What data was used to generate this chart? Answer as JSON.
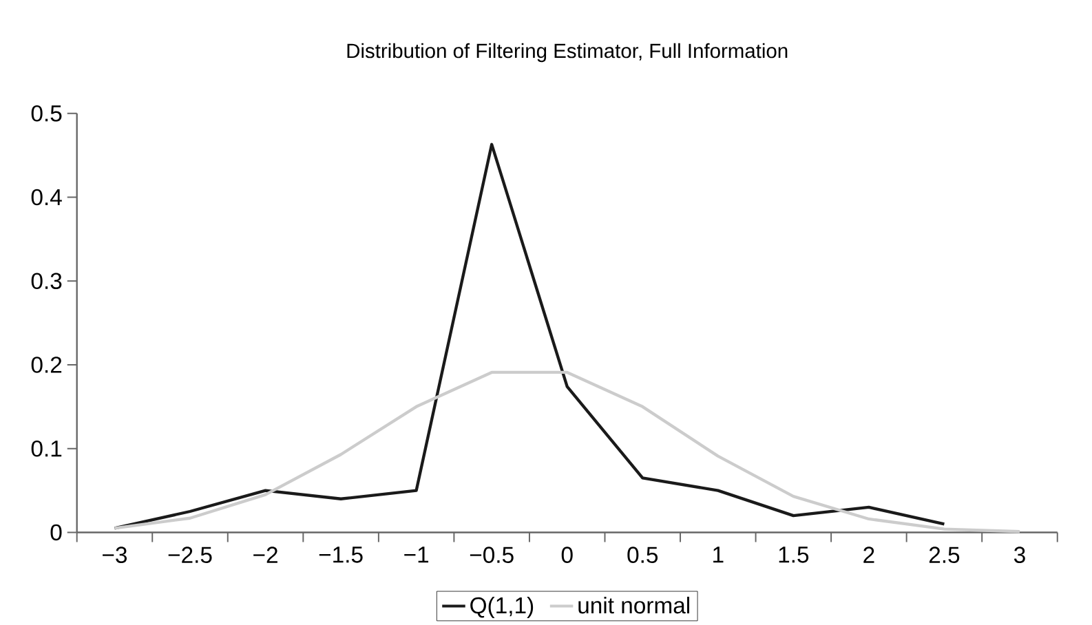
{
  "chart_data": {
    "type": "line",
    "title": "Distribution of Filtering Estimator, Full Information",
    "categories": [
      "−3",
      "−2.5",
      "−2",
      "−1.5",
      "−1",
      "−0.5",
      "0",
      "0.5",
      "1",
      "1.5",
      "2",
      "2.5",
      "3"
    ],
    "series": [
      {
        "name": "Q(1,1)",
        "color": "#1a1a1a",
        "values": [
          0.005,
          0.025,
          0.05,
          0.04,
          0.05,
          0.463,
          0.174,
          0.065,
          0.05,
          0.02,
          0.03,
          0.01,
          null
        ]
      },
      {
        "name": "unit normal",
        "color": "#cccccc",
        "values": [
          0.005,
          0.017,
          0.045,
          0.093,
          0.15,
          0.191,
          0.191,
          0.15,
          0.091,
          0.043,
          0.016,
          0.004,
          0.001
        ]
      }
    ],
    "ylim": [
      0,
      0.5
    ],
    "yticks": [
      0,
      0.1,
      0.2,
      0.3,
      0.4,
      0.5
    ],
    "grid": false,
    "legend": "bottom",
    "marker": "none",
    "line_style": "solid"
  }
}
